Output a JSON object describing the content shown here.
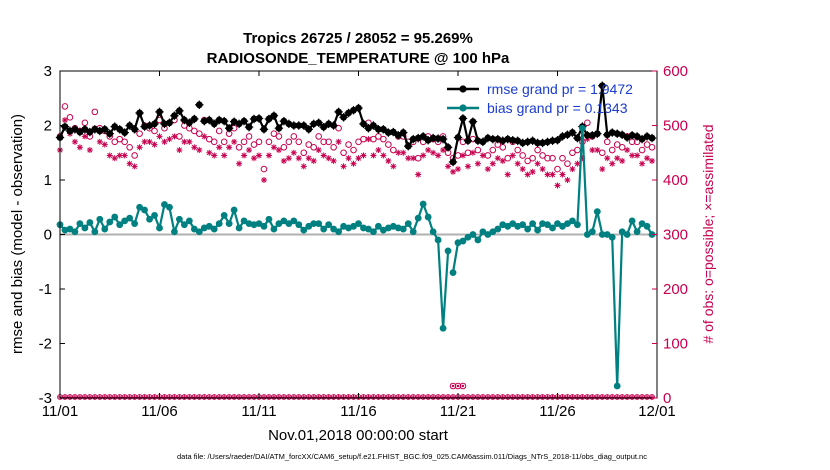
{
  "chart_data": {
    "type": "line",
    "title": "Tropics 26725 / 28052 = 95.269%",
    "subtitle": "RADIOSONDE_TEMPERATURE @ 100 hPa",
    "xlabel": "Nov.01,2018 00:00:00 start",
    "ylabel_left": "rmse and bias (model - observation)",
    "ylabel_right": "# of obs: o=possible; ×=assimilated",
    "xlim": [
      0,
      30
    ],
    "ylim_left": [
      -3,
      3
    ],
    "ylim_right": [
      0,
      600
    ],
    "x_tick_labels": [
      "11/01",
      "11/06",
      "11/11",
      "11/16",
      "11/21",
      "11/26",
      "12/01"
    ],
    "x_tick_values": [
      0,
      5,
      10,
      15,
      20,
      25,
      30
    ],
    "y_left_ticks": [
      "-3",
      "-2",
      "-1",
      "0",
      "1",
      "2",
      "3"
    ],
    "y_right_ticks": [
      "0",
      "100",
      "200",
      "300",
      "400",
      "500",
      "600"
    ],
    "zero_line": 0,
    "legend": [
      {
        "label": "rmse grand pr = 1.9472",
        "color": "#000000"
      },
      {
        "label": "bias grand pr = 0.1343",
        "color": "#008080"
      }
    ],
    "series": [
      {
        "name": "rmse",
        "axis": "left",
        "color": "#000000",
        "x": [
          0.0,
          0.25,
          0.5,
          0.75,
          1.0,
          1.25,
          1.5,
          1.75,
          2.0,
          2.25,
          2.5,
          2.75,
          3.0,
          3.25,
          3.5,
          3.75,
          4.0,
          4.25,
          4.5,
          4.75,
          5.0,
          5.25,
          5.5,
          5.75,
          6.0,
          6.25,
          6.5,
          6.75,
          7.0,
          7.25,
          7.5,
          7.75,
          8.0,
          8.25,
          8.5,
          8.75,
          9.0,
          9.25,
          9.5,
          9.75,
          10.0,
          10.25,
          10.5,
          10.75,
          11.0,
          11.25,
          11.5,
          11.75,
          12.0,
          12.25,
          12.5,
          12.75,
          13.0,
          13.25,
          13.5,
          13.75,
          14.0,
          14.25,
          14.5,
          14.75,
          15.0,
          15.25,
          15.5,
          15.75,
          16.0,
          16.25,
          16.5,
          16.75,
          17.0,
          17.25,
          17.5,
          17.75,
          18.0,
          18.25,
          18.5,
          18.75,
          19.0,
          19.25,
          19.5,
          19.75,
          20.0,
          20.25,
          20.5,
          20.75,
          21.0,
          21.25,
          21.5,
          21.75,
          22.0,
          22.25,
          22.5,
          22.75,
          23.0,
          23.25,
          23.5,
          23.75,
          24.0,
          24.25,
          24.5,
          24.75,
          25.0,
          25.25,
          25.5,
          25.75,
          26.0,
          26.25,
          26.5,
          26.75,
          27.0,
          27.25,
          27.5,
          27.75,
          28.0,
          28.25,
          28.5,
          28.75,
          29.0,
          29.25,
          29.5,
          29.75
        ],
        "values": [
          1.78,
          1.98,
          1.9,
          1.93,
          1.88,
          1.93,
          1.88,
          1.93,
          1.9,
          1.93,
          1.85,
          1.98,
          1.93,
          1.87,
          2.0,
          1.93,
          2.23,
          1.98,
          2.0,
          2.03,
          2.25,
          2.03,
          2.05,
          2.18,
          2.27,
          2.1,
          2.05,
          2.12,
          2.38,
          2.08,
          2.1,
          2.03,
          2.1,
          2.08,
          1.95,
          2.07,
          2.03,
          2.08,
          1.97,
          2.12,
          2.13,
          1.93,
          2.12,
          2.18,
          1.95,
          2.08,
          2.03,
          2.0,
          2.0,
          2.0,
          1.93,
          2.03,
          2.05,
          1.97,
          2.03,
          2.0,
          2.25,
          2.15,
          2.23,
          2.28,
          2.32,
          2.03,
          1.95,
          2.0,
          1.93,
          1.93,
          1.87,
          1.88,
          1.82,
          1.87,
          1.62,
          1.75,
          1.77,
          1.8,
          1.73,
          1.77,
          1.76,
          1.75,
          1.6,
          1.33,
          1.78,
          2.13,
          1.72,
          2.07,
          1.72,
          1.7,
          1.77,
          1.75,
          1.75,
          1.72,
          1.75,
          1.73,
          1.72,
          1.68,
          1.7,
          1.72,
          1.68,
          1.68,
          1.7,
          1.72,
          1.73,
          1.8,
          1.83,
          1.87,
          1.77,
          1.98,
          1.82,
          1.82,
          1.85,
          2.73,
          1.83,
          1.87,
          1.85,
          1.83,
          1.78,
          1.82,
          1.8,
          1.75,
          1.8,
          1.77
        ],
        "gaps_after_index": [
          27,
          28,
          78,
          88
        ]
      },
      {
        "name": "bias",
        "axis": "left",
        "color": "#008080",
        "x": [
          0.0,
          0.25,
          0.5,
          0.75,
          1.0,
          1.25,
          1.5,
          1.75,
          2.0,
          2.25,
          2.5,
          2.75,
          3.0,
          3.25,
          3.5,
          3.75,
          4.0,
          4.25,
          4.5,
          4.75,
          5.0,
          5.25,
          5.5,
          5.75,
          6.0,
          6.25,
          6.5,
          6.75,
          7.0,
          7.25,
          7.5,
          7.75,
          8.0,
          8.25,
          8.5,
          8.75,
          9.0,
          9.25,
          9.5,
          9.75,
          10.0,
          10.25,
          10.5,
          10.75,
          11.0,
          11.25,
          11.5,
          11.75,
          12.0,
          12.25,
          12.5,
          12.75,
          13.0,
          13.25,
          13.5,
          13.75,
          14.0,
          14.25,
          14.5,
          14.75,
          15.0,
          15.25,
          15.5,
          15.75,
          16.0,
          16.25,
          16.5,
          16.75,
          17.0,
          17.25,
          17.5,
          17.75,
          18.0,
          18.25,
          18.5,
          18.75,
          19.0,
          19.25,
          19.5,
          19.75,
          20.0,
          20.25,
          20.5,
          20.75,
          21.0,
          21.25,
          21.5,
          21.75,
          22.0,
          22.25,
          22.5,
          22.75,
          23.0,
          23.25,
          23.5,
          23.75,
          24.0,
          24.25,
          24.5,
          24.75,
          25.0,
          25.25,
          25.5,
          25.75,
          26.0,
          26.25,
          26.5,
          26.75,
          27.0,
          27.25,
          27.5,
          27.75,
          28.0,
          28.25,
          28.5,
          28.75,
          29.0,
          29.25,
          29.5,
          29.75
        ],
        "values": [
          0.18,
          0.08,
          0.1,
          0.05,
          0.2,
          0.12,
          0.22,
          0.05,
          0.28,
          0.1,
          0.23,
          0.32,
          0.18,
          0.25,
          0.3,
          0.2,
          0.5,
          0.45,
          0.28,
          0.35,
          0.12,
          0.55,
          0.5,
          0.05,
          0.28,
          0.18,
          0.25,
          0.1,
          0.05,
          0.12,
          0.15,
          0.1,
          0.2,
          0.35,
          0.2,
          0.45,
          0.12,
          0.25,
          0.2,
          0.18,
          0.2,
          0.15,
          0.28,
          0.1,
          0.2,
          0.25,
          0.2,
          0.25,
          0.18,
          0.08,
          0.15,
          0.2,
          0.2,
          0.1,
          0.18,
          0.1,
          0.05,
          0.15,
          0.12,
          0.15,
          0.2,
          0.12,
          0.1,
          0.05,
          0.15,
          0.08,
          0.12,
          0.15,
          0.12,
          0.1,
          0.2,
          0.05,
          0.3,
          0.56,
          0.32,
          0.05,
          -0.1,
          -1.72,
          -0.3,
          -0.7,
          -0.15,
          -0.12,
          -0.05,
          0.0,
          -0.1,
          0.05,
          0.0,
          0.05,
          0.1,
          0.18,
          0.15,
          0.2,
          0.15,
          0.18,
          0.1,
          0.2,
          0.08,
          0.2,
          0.18,
          0.12,
          0.2,
          0.15,
          0.2,
          0.25,
          0.18,
          1.95,
          0.0,
          0.05,
          0.42,
          0.0,
          0.0,
          -0.05,
          -2.78,
          0.05,
          0.0,
          0.25,
          0.05,
          0.2,
          0.15,
          0.0
        ],
        "gaps_after_index": [
          27,
          28,
          78,
          88
        ]
      },
      {
        "name": "possible obs",
        "axis": "right",
        "color": "#c8004f",
        "marker": "circle",
        "x": [
          0.0,
          0.25,
          0.5,
          0.75,
          1.0,
          1.25,
          1.5,
          1.75,
          2.0,
          2.25,
          2.5,
          2.75,
          3.0,
          3.25,
          3.5,
          3.75,
          4.0,
          4.25,
          4.5,
          4.75,
          5.0,
          5.25,
          5.5,
          5.75,
          6.0,
          6.25,
          6.5,
          6.75,
          7.0,
          7.25,
          7.5,
          7.75,
          8.0,
          8.25,
          8.5,
          8.75,
          9.0,
          9.25,
          9.5,
          9.75,
          10.0,
          10.25,
          10.5,
          10.75,
          11.0,
          11.25,
          11.5,
          11.75,
          12.0,
          12.25,
          12.5,
          12.75,
          13.0,
          13.25,
          13.5,
          13.75,
          14.0,
          14.25,
          14.5,
          14.75,
          15.0,
          15.25,
          15.5,
          15.75,
          16.0,
          16.25,
          16.5,
          16.75,
          17.0,
          17.25,
          17.5,
          17.75,
          18.0,
          18.25,
          18.5,
          18.75,
          19.0,
          19.25,
          19.5,
          19.75,
          20.0,
          20.25,
          20.5,
          20.75,
          21.0,
          21.25,
          21.5,
          21.75,
          22.0,
          22.25,
          22.5,
          22.75,
          23.0,
          23.25,
          23.5,
          23.75,
          24.0,
          24.25,
          24.5,
          24.75,
          25.0,
          25.25,
          25.5,
          25.75,
          26.0,
          26.25,
          26.5,
          26.75,
          27.0,
          27.25,
          27.5,
          27.75,
          28.0,
          28.25,
          28.5,
          28.75,
          29.0,
          29.25,
          29.5,
          29.75
        ],
        "values": [
          480,
          535,
          515,
          495,
          490,
          505,
          480,
          525,
          495,
          490,
          480,
          470,
          475,
          470,
          460,
          445,
          485,
          500,
          495,
          490,
          510,
          495,
          505,
          510,
          480,
          500,
          495,
          490,
          485,
          510,
          475,
          470,
          490,
          470,
          485,
          495,
          460,
          470,
          480,
          465,
          470,
          420,
          470,
          485,
          480,
          460,
          470,
          480,
          470,
          450,
          465,
          460,
          480,
          470,
          470,
          460,
          495,
          450,
          465,
          455,
          470,
          475,
          505,
          475,
          480,
          475,
          465,
          455,
          480,
          480,
          470,
          470,
          440,
          470,
          480,
          475,
          470,
          480,
          450,
          440,
          445,
          470,
          450,
          475,
          455,
          470,
          445,
          455,
          465,
          460,
          440,
          470,
          455,
          445,
          435,
          440,
          455,
          445,
          440,
          440,
          420,
          440,
          430,
          450,
          455,
          470,
          505,
          480,
          485,
          450,
          470,
          455,
          465,
          460,
          480,
          470,
          470,
          455,
          465,
          460
        ],
        "extra_low_points": [
          [
            19.75,
            22
          ],
          [
            20.0,
            22
          ],
          [
            20.25,
            22
          ]
        ]
      },
      {
        "name": "assimilated obs",
        "axis": "right",
        "color": "#c8004f",
        "marker": "asterisk",
        "x": [
          0.0,
          0.25,
          0.5,
          0.75,
          1.0,
          1.25,
          1.5,
          1.75,
          2.0,
          2.25,
          2.5,
          2.75,
          3.0,
          3.25,
          3.5,
          3.75,
          4.0,
          4.25,
          4.5,
          4.75,
          5.0,
          5.25,
          5.5,
          5.75,
          6.0,
          6.25,
          6.5,
          6.75,
          7.0,
          7.25,
          7.5,
          7.75,
          8.0,
          8.25,
          8.5,
          8.75,
          9.0,
          9.25,
          9.5,
          9.75,
          10.0,
          10.25,
          10.5,
          10.75,
          11.0,
          11.25,
          11.5,
          11.75,
          12.0,
          12.25,
          12.5,
          12.75,
          13.0,
          13.25,
          13.5,
          13.75,
          14.0,
          14.25,
          14.5,
          14.75,
          15.0,
          15.25,
          15.5,
          15.75,
          16.0,
          16.25,
          16.5,
          16.75,
          17.0,
          17.25,
          17.5,
          17.75,
          18.0,
          18.25,
          18.5,
          18.75,
          19.0,
          19.25,
          19.5,
          19.75,
          20.0,
          20.25,
          20.5,
          20.75,
          21.0,
          21.25,
          21.5,
          21.75,
          22.0,
          22.25,
          22.5,
          22.75,
          23.0,
          23.25,
          23.5,
          23.75,
          24.0,
          24.25,
          24.5,
          24.75,
          25.0,
          25.25,
          25.5,
          25.75,
          26.0,
          26.25,
          26.5,
          26.75,
          27.0,
          27.25,
          27.5,
          27.75,
          28.0,
          28.25,
          28.5,
          28.75,
          29.0,
          29.25,
          29.5,
          29.75
        ],
        "values": [
          455,
          510,
          485,
          470,
          460,
          480,
          455,
          495,
          470,
          465,
          445,
          440,
          445,
          445,
          430,
          425,
          460,
          470,
          470,
          465,
          480,
          470,
          475,
          480,
          455,
          470,
          470,
          460,
          455,
          480,
          450,
          445,
          460,
          445,
          460,
          470,
          430,
          445,
          455,
          440,
          445,
          400,
          445,
          460,
          455,
          435,
          440,
          450,
          440,
          425,
          440,
          435,
          455,
          445,
          440,
          435,
          470,
          425,
          440,
          430,
          440,
          445,
          475,
          445,
          455,
          445,
          435,
          425,
          450,
          450,
          440,
          440,
          410,
          445,
          455,
          450,
          445,
          455,
          425,
          415,
          420,
          445,
          425,
          450,
          430,
          445,
          420,
          430,
          440,
          435,
          410,
          445,
          430,
          420,
          410,
          415,
          430,
          420,
          410,
          410,
          390,
          410,
          400,
          420,
          430,
          440,
          475,
          455,
          455,
          420,
          440,
          430,
          440,
          435,
          455,
          445,
          445,
          430,
          440,
          435
        ]
      }
    ],
    "footnote": "data file: /Users/raeder/DAI/ATM_forcXX/CAM6_setup/f.e21.FHIST_BGC.f09_025.CAM6assim.011/Diags_NTrS_2018-11/obs_diag_output.nc"
  }
}
